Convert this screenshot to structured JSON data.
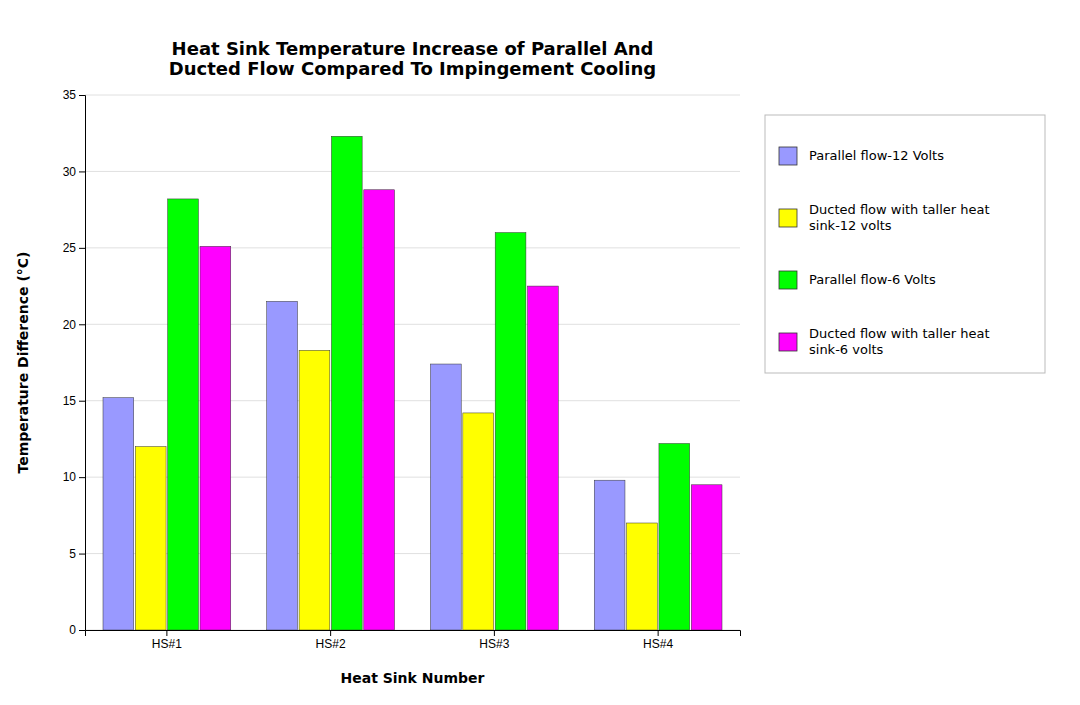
{
  "chart_data": {
    "type": "bar",
    "title": "Heat Sink Temperature Increase of Parallel And\nDucted Flow Compared To Impingement Cooling",
    "xlabel": "Heat Sink Number",
    "ylabel": "Temperature Difference (°C)",
    "categories": [
      "HS#1",
      "HS#2",
      "HS#3",
      "HS#4"
    ],
    "series": [
      {
        "name": "Parallel flow-12 Volts",
        "color": "#9999FF",
        "values": [
          15.2,
          21.5,
          17.4,
          9.8
        ]
      },
      {
        "name": "Ducted flow with taller heat\nsink-12 volts",
        "color": "#FFFF00",
        "values": [
          12.0,
          18.3,
          14.2,
          7.0
        ]
      },
      {
        "name": "Parallel flow-6 Volts",
        "color": "#00FF00",
        "values": [
          28.2,
          32.3,
          26.0,
          12.2
        ]
      },
      {
        "name": "Ducted flow with taller heat\nsink-6 volts",
        "color": "#FF00FF",
        "values": [
          25.1,
          28.8,
          22.5,
          9.5
        ]
      }
    ],
    "ylim": [
      0,
      35
    ],
    "yticks": [
      0,
      5,
      10,
      15,
      20,
      25,
      30,
      35
    ],
    "grid": true,
    "legend": "right"
  }
}
